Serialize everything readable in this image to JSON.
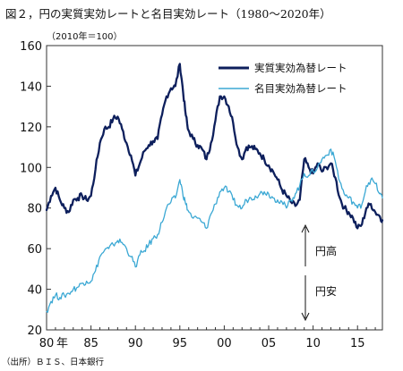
{
  "figure": {
    "title": "図２，円の実質実効レートと名目実効レート（1980～2020年）",
    "unit_note": "（2010年＝100）",
    "source": "（出所）ＢＩＳ、日本銀行"
  },
  "colors": {
    "real": "#0d1f5c",
    "nominal": "#3ba8d4",
    "axis": "#333333"
  },
  "chart_data": {
    "type": "line",
    "title": "",
    "xlabel": "",
    "ylabel": "",
    "ylim": [
      20,
      160
    ],
    "xlim": [
      1980,
      2017.8
    ],
    "yticks": [
      20,
      40,
      60,
      80,
      100,
      120,
      140,
      160
    ],
    "xticks": [
      {
        "value": 1980,
        "label": "80"
      },
      {
        "value": 1985,
        "label": "85"
      },
      {
        "value": 1990,
        "label": "90"
      },
      {
        "value": 1995,
        "label": "95"
      },
      {
        "value": 2000,
        "label": "00"
      },
      {
        "value": 2005,
        "label": "05"
      },
      {
        "value": 2010,
        "label": "10"
      },
      {
        "value": 2015,
        "label": "15"
      }
    ],
    "x_suffix": "年",
    "grid": false,
    "legend_position": "top-right",
    "series": [
      {
        "name": "実質実効為替レート",
        "color": "#0d1f5c",
        "x": [
          1980.0,
          1980.5,
          1981.0,
          1981.5,
          1982.0,
          1982.5,
          1983.0,
          1983.5,
          1984.0,
          1984.5,
          1985.0,
          1985.5,
          1986.0,
          1986.5,
          1987.0,
          1987.5,
          1988.0,
          1988.5,
          1989.0,
          1989.5,
          1990.0,
          1990.5,
          1991.0,
          1991.5,
          1992.0,
          1992.5,
          1993.0,
          1993.5,
          1994.0,
          1994.5,
          1995.0,
          1995.3,
          1995.6,
          1995.9,
          1996.5,
          1997.0,
          1997.5,
          1998.0,
          1998.5,
          1999.0,
          1999.5,
          2000.0,
          2000.5,
          2001.0,
          2001.5,
          2002.0,
          2002.5,
          2003.0,
          2003.5,
          2004.0,
          2004.5,
          2005.0,
          2005.5,
          2006.0,
          2006.5,
          2007.0,
          2007.5,
          2008.0,
          2008.5,
          2009.0,
          2009.5,
          2010.0,
          2010.5,
          2011.0,
          2011.5,
          2012.0,
          2012.5,
          2013.0,
          2013.5,
          2014.0,
          2014.5,
          2015.0,
          2015.5,
          2016.0,
          2016.5,
          2017.0,
          2017.5,
          2017.8
        ],
        "values": [
          79,
          86,
          90,
          84,
          80,
          78,
          84,
          85,
          86,
          84,
          86,
          99,
          112,
          119,
          120,
          124,
          125,
          119,
          112,
          106,
          96,
          102,
          108,
          111,
          113,
          114,
          126,
          135,
          139,
          140,
          151,
          140,
          128,
          119,
          114,
          111,
          109,
          104,
          112,
          123,
          135,
          135,
          130,
          122,
          110,
          104,
          110,
          110,
          109,
          107,
          104,
          101,
          98,
          94,
          89,
          86,
          83,
          81,
          84,
          104,
          100,
          97,
          102,
          98,
          100,
          102,
          95,
          85,
          80,
          78,
          75,
          70,
          72,
          80,
          82,
          78,
          76,
          74
        ]
      },
      {
        "name": "名目実効為替レート",
        "color": "#3ba8d4",
        "x": [
          1980.0,
          1980.5,
          1981.0,
          1981.5,
          1982.0,
          1982.5,
          1983.0,
          1983.5,
          1984.0,
          1984.5,
          1985.0,
          1985.5,
          1986.0,
          1986.5,
          1987.0,
          1987.5,
          1988.0,
          1988.5,
          1989.0,
          1989.5,
          1990.0,
          1990.5,
          1991.0,
          1991.5,
          1992.0,
          1992.5,
          1993.0,
          1993.5,
          1994.0,
          1994.5,
          1995.0,
          1995.3,
          1995.6,
          1995.9,
          1996.5,
          1997.0,
          1997.5,
          1998.0,
          1998.5,
          1999.0,
          1999.5,
          2000.0,
          2000.5,
          2001.0,
          2001.5,
          2002.0,
          2002.5,
          2003.0,
          2003.5,
          2004.0,
          2004.5,
          2005.0,
          2005.5,
          2006.0,
          2006.5,
          2007.0,
          2007.5,
          2008.0,
          2008.5,
          2009.0,
          2009.5,
          2010.0,
          2010.5,
          2011.0,
          2011.5,
          2012.0,
          2012.5,
          2013.0,
          2013.5,
          2014.0,
          2014.5,
          2015.0,
          2015.5,
          2016.0,
          2016.5,
          2017.0,
          2017.5,
          2017.8
        ],
        "values": [
          29,
          34,
          37,
          36,
          37,
          38,
          40,
          41,
          43,
          44,
          44,
          49,
          56,
          59,
          60,
          62,
          64,
          63,
          60,
          56,
          51,
          57,
          59,
          62,
          65,
          67,
          73,
          80,
          83,
          85,
          94,
          88,
          83,
          79,
          75,
          75,
          73,
          70,
          77,
          82,
          88,
          90,
          88,
          84,
          81,
          80,
          84,
          85,
          86,
          87,
          88,
          87,
          85,
          84,
          83,
          80,
          84,
          87,
          91,
          97,
          96,
          98,
          100,
          104,
          106,
          109,
          103,
          93,
          87,
          85,
          83,
          80,
          82,
          91,
          94,
          92,
          87,
          85
        ]
      }
    ],
    "annotations": [
      {
        "text": "円高",
        "arrow": "up"
      },
      {
        "text": "円安",
        "arrow": "down"
      }
    ]
  }
}
